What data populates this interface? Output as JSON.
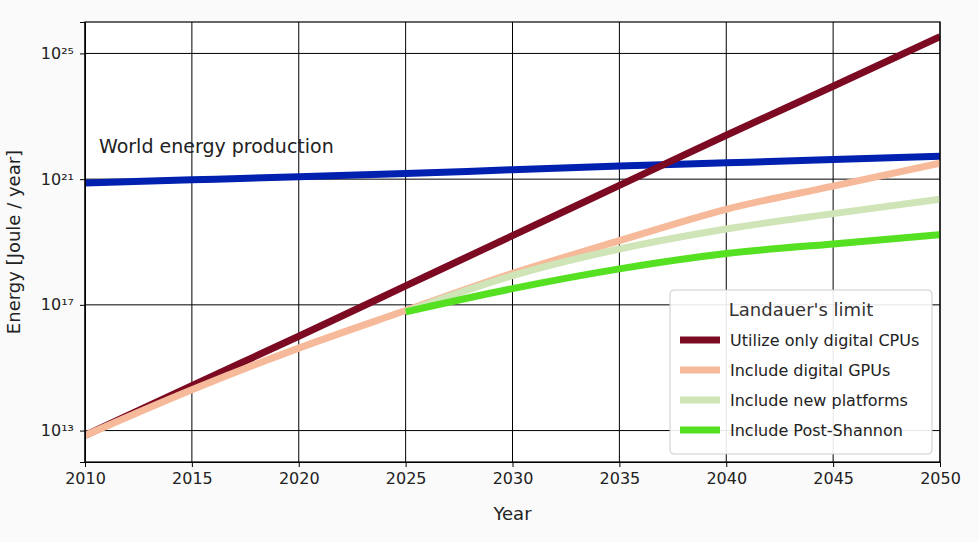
{
  "chart_data": {
    "type": "line",
    "x_label": "Year",
    "y_label": "Energy [Joule / year]",
    "legend_title": "Landauer's limit",
    "legend": "lower right",
    "grid": true,
    "log": "y",
    "xlim": [
      2010,
      2050
    ],
    "ylim": [
      1000000000000.0,
      1e+26
    ],
    "xticks": [
      2010,
      2015,
      2020,
      2025,
      2030,
      2035,
      2040,
      2045,
      2050
    ],
    "yticks": [
      {
        "value": 10000000000000.0,
        "label": "10¹³"
      },
      {
        "value": 1e+17,
        "label": "10¹⁷"
      },
      {
        "value": 1e+21,
        "label": "10²¹"
      },
      {
        "value": 1e+25,
        "label": "10²⁵"
      }
    ],
    "x": [
      2010,
      2015,
      2020,
      2025,
      2030,
      2035,
      2040,
      2045,
      2050
    ],
    "series": [
      {
        "name": "World energy production",
        "type": "reference",
        "color": "#0020b0",
        "values": [
          7.5e+20,
          9.5e+20,
          1.2e+21,
          1.5e+21,
          2e+21,
          2.6e+21,
          3.3e+21,
          4.2e+21,
          5.4e+21
        ]
      },
      {
        "name": "Utilize only digital CPUs",
        "type": "line",
        "color": "#7b0a22",
        "values": [
          7000000000000.0,
          270000000000000.0,
          1e+16,
          4e+17,
          1.6e+19,
          6.3e+20,
          2.5e+22,
          9e+23,
          3.4e+25
        ]
      },
      {
        "name": "Include digital GPUs",
        "type": "line",
        "color": "#f6b99a",
        "values": [
          7000000000000.0,
          200000000000000.0,
          4200000000000000.0,
          6.6e+16,
          1e+18,
          1.1e+19,
          1.1e+20,
          6e+20,
          3.2e+21
        ]
      },
      {
        "name": "Include new platforms",
        "type": "line",
        "color": "#cfe5b8",
        "values": [
          null,
          null,
          null,
          6e+16,
          8.5e+17,
          6e+18,
          2.6e+19,
          8e+19,
          2.3e+20
        ]
      },
      {
        "name": "Include Post-Shannon",
        "type": "line",
        "color": "#55e022",
        "values": [
          null,
          null,
          null,
          6e+16,
          3.3e+17,
          1.4e+18,
          4.3e+18,
          8.7e+18,
          1.7e+19
        ]
      }
    ]
  }
}
